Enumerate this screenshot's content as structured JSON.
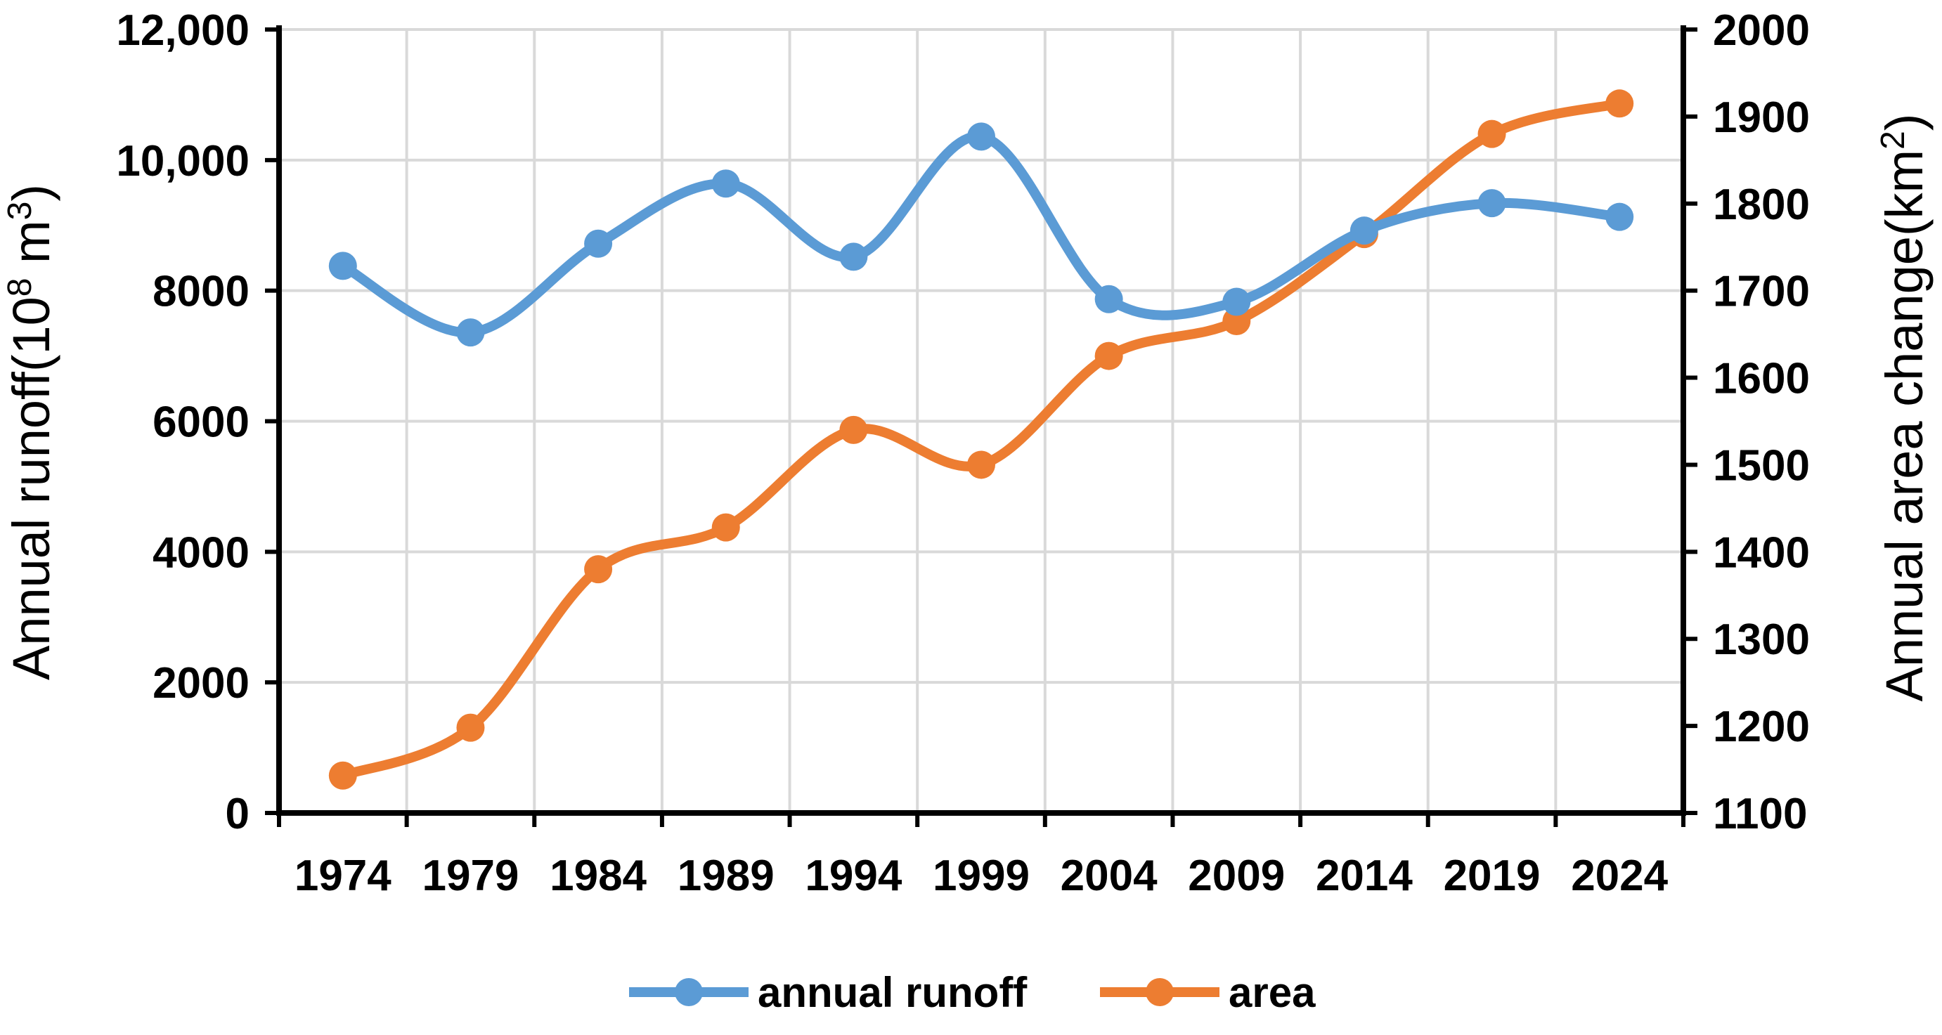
{
  "chart_data": {
    "type": "line",
    "x": [
      1974,
      1979,
      1984,
      1989,
      1994,
      1999,
      2004,
      2009,
      2014,
      2019,
      2024
    ],
    "x_tick_labels": [
      "1974",
      "1979",
      "1984",
      "1989",
      "1994",
      "1999",
      "2004",
      "2009",
      "2014",
      "2019",
      "2024"
    ],
    "y_left": {
      "ylim": [
        0,
        12000
      ],
      "tick_values": [
        0,
        2000,
        4000,
        6000,
        8000,
        10000,
        12000
      ],
      "tick_labels": [
        "0",
        "2000",
        "4000",
        "6000",
        "8000",
        "10,000",
        "12,000"
      ],
      "label_prefix": "Annual runoff(10",
      "label_sup1": "8",
      "label_mid": " m",
      "label_sup2": "3",
      "label_suffix": ")"
    },
    "y_right": {
      "ylim": [
        1100,
        2000
      ],
      "tick_values": [
        1100,
        1200,
        1300,
        1400,
        1500,
        1600,
        1700,
        1800,
        1900,
        2000
      ],
      "tick_labels": [
        "1100",
        "1200",
        "1300",
        "1400",
        "1500",
        "1600",
        "1700",
        "1800",
        "1900",
        "2000"
      ],
      "label_prefix": "Annual  area change(km",
      "label_sup": "2",
      "label_suffix": ")"
    },
    "series": [
      {
        "name": "annual runoff",
        "axis": "left",
        "color": "#5B9BD5",
        "values": [
          8380,
          7360,
          8720,
          9640,
          8520,
          10360,
          7870,
          7830,
          8920,
          9340,
          9130
        ]
      },
      {
        "name": "area",
        "axis": "right",
        "color": "#ED7D31",
        "values": [
          1143,
          1198,
          1380,
          1428,
          1540,
          1500,
          1625,
          1665,
          1765,
          1880,
          1915
        ]
      }
    ],
    "grid": true,
    "legend_position": "bottom"
  }
}
